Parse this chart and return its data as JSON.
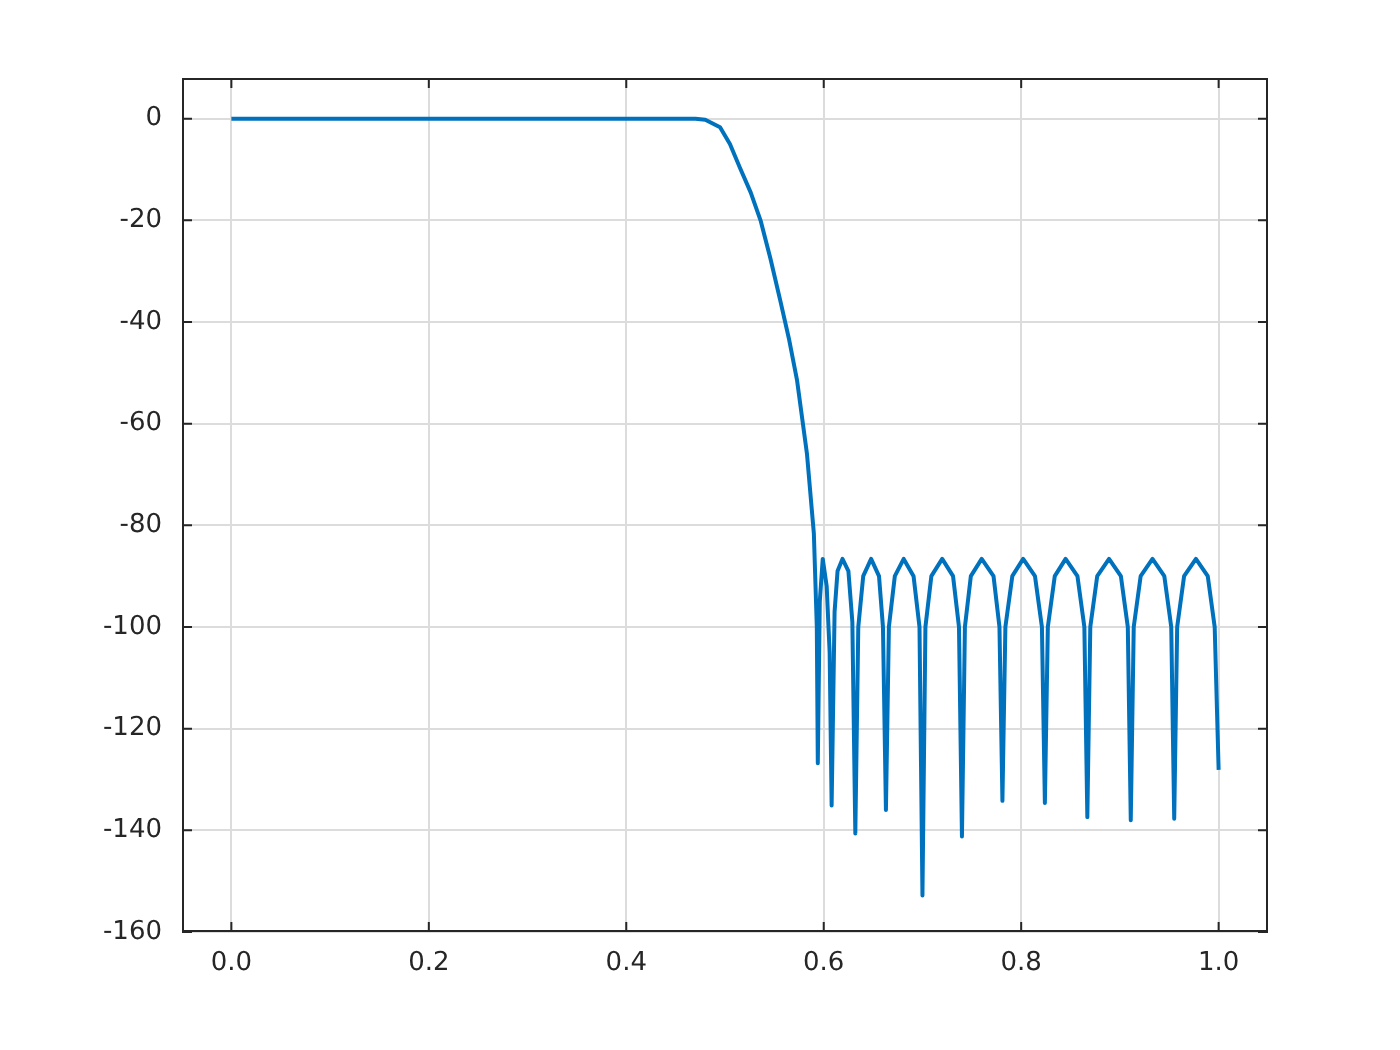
{
  "chart_data": {
    "type": "line",
    "grid": true,
    "xlim": [
      -0.05,
      1.05
    ],
    "ylim": [
      -160,
      8
    ],
    "xticks": [
      {
        "value": 0,
        "label": "0.0"
      },
      0.2,
      0.4,
      0.6,
      0.8,
      {
        "value": 1,
        "label": "1.0"
      }
    ],
    "yticks": [
      -160,
      -140,
      -120,
      -100,
      -80,
      -60,
      -40,
      -20,
      0
    ],
    "series": [
      {
        "color": "#0072bd",
        "x": [
          0,
          0.1,
          0.2,
          0.3,
          0.4,
          0.47,
          0.48,
          0.495,
          0.505,
          0.515,
          0.526,
          0.536,
          0.546,
          0.556,
          0.565,
          0.573,
          0.583,
          0.59,
          0.593,
          0.594,
          0.596,
          0.599,
          0.603,
          0.606,
          0.608,
          0.611,
          0.614,
          0.619,
          0.625,
          0.629,
          0.632,
          0.635,
          0.64,
          0.648,
          0.656,
          0.66,
          0.663,
          0.666,
          0.672,
          0.681,
          0.691,
          0.697,
          0.7,
          0.703,
          0.709,
          0.72,
          0.731,
          0.737,
          0.74,
          0.743,
          0.749,
          0.76,
          0.772,
          0.778,
          0.781,
          0.784,
          0.791,
          0.802,
          0.814,
          0.821,
          0.824,
          0.827,
          0.834,
          0.845,
          0.857,
          0.864,
          0.867,
          0.87,
          0.877,
          0.889,
          0.901,
          0.908,
          0.911,
          0.914,
          0.921,
          0.933,
          0.945,
          0.952,
          0.955,
          0.958,
          0.965,
          0.977,
          0.989,
          0.996,
          1.0
        ],
        "values": [
          0,
          0,
          0,
          0,
          0,
          0,
          -0.2,
          -1.7,
          -5,
          -9.6,
          -14.5,
          -20,
          -27.5,
          -35.8,
          -43.5,
          -51.5,
          -65.9,
          -81.6,
          -100,
          -126.8,
          -95,
          -86.6,
          -92,
          -105,
          -135.1,
          -97,
          -89,
          -86.6,
          -89,
          -99,
          -140.6,
          -100,
          -90,
          -86.6,
          -90,
          -100,
          -136,
          -100,
          -90,
          -86.6,
          -90,
          -100,
          -152.8,
          -100,
          -90,
          -86.6,
          -90,
          -100,
          -141.2,
          -100,
          -90,
          -86.6,
          -90,
          -100,
          -134.2,
          -100,
          -90,
          -86.6,
          -90,
          -100,
          -134.6,
          -100,
          -90,
          -86.6,
          -90,
          -100,
          -137.4,
          -100,
          -90,
          -86.6,
          -90,
          -100,
          -138,
          -100,
          -90,
          -86.6,
          -90,
          -100,
          -137.7,
          -100,
          -90,
          -86.6,
          -90,
          -100,
          -128.1
        ]
      }
    ]
  }
}
